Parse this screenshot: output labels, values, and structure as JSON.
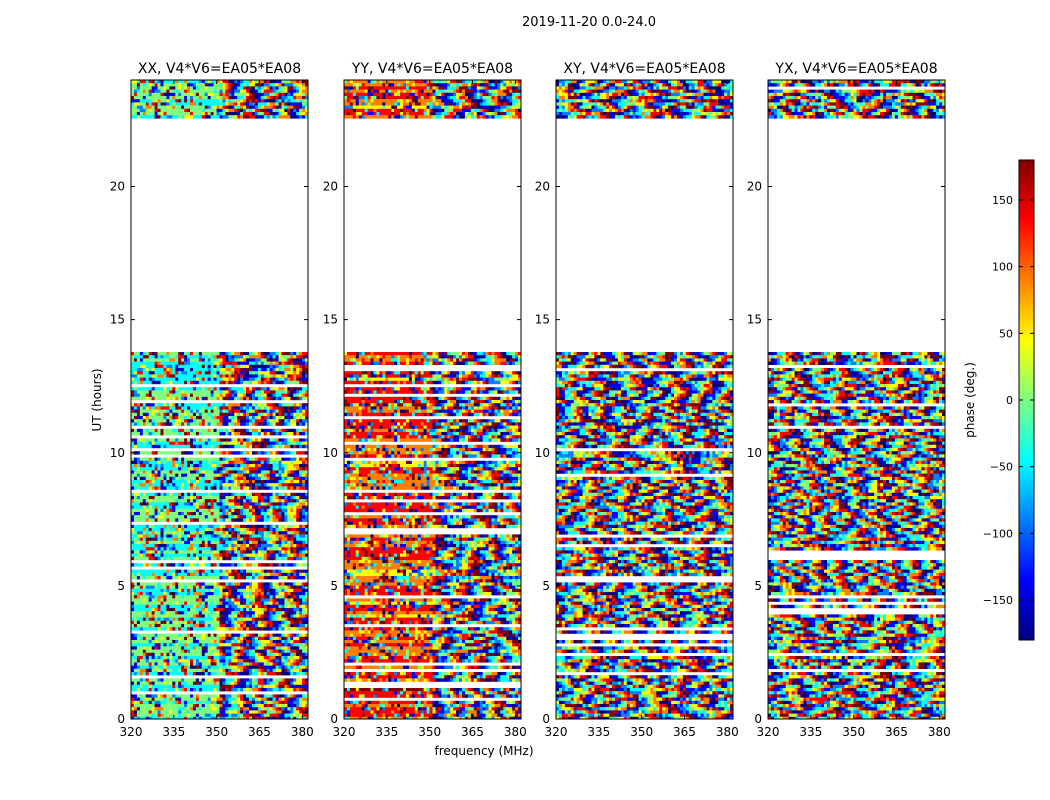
{
  "chart_data": {
    "type": "heatmap",
    "suptitle": "2019-11-20 0.0-24.0",
    "xlabel": "frequency (MHz)",
    "ylabel": "UT (hours)",
    "xlim": [
      320,
      382
    ],
    "ylim": [
      0,
      24
    ],
    "xticks": [
      320,
      335,
      350,
      365,
      380
    ],
    "yticks": [
      0,
      5,
      10,
      15,
      20
    ],
    "panels": [
      {
        "title": "XX, V4*V6=EA05*EA08",
        "pol": "XX"
      },
      {
        "title": "YY, V4*V6=EA05*EA08",
        "pol": "YY"
      },
      {
        "title": "XY, V4*V6=EA05*EA08",
        "pol": "XY"
      },
      {
        "title": "YX, V4*V6=EA05*EA08",
        "pol": "YX"
      }
    ],
    "data_gap_hours": [
      [
        13.8,
        22.6
      ]
    ],
    "colorbar": {
      "label": "phase (deg.)",
      "range": [
        -180,
        180
      ],
      "ticks": [
        -150,
        -100,
        -50,
        0,
        50,
        100,
        150
      ],
      "tick_labels": [
        "−150",
        "−100",
        "−50",
        "0",
        "50",
        "100",
        "150"
      ],
      "colormap": [
        "#00007f",
        "#0000ff",
        "#007fff",
        "#00ffff",
        "#7fff7f",
        "#ffff00",
        "#ff7f00",
        "#ff0000",
        "#7f0000"
      ]
    }
  }
}
